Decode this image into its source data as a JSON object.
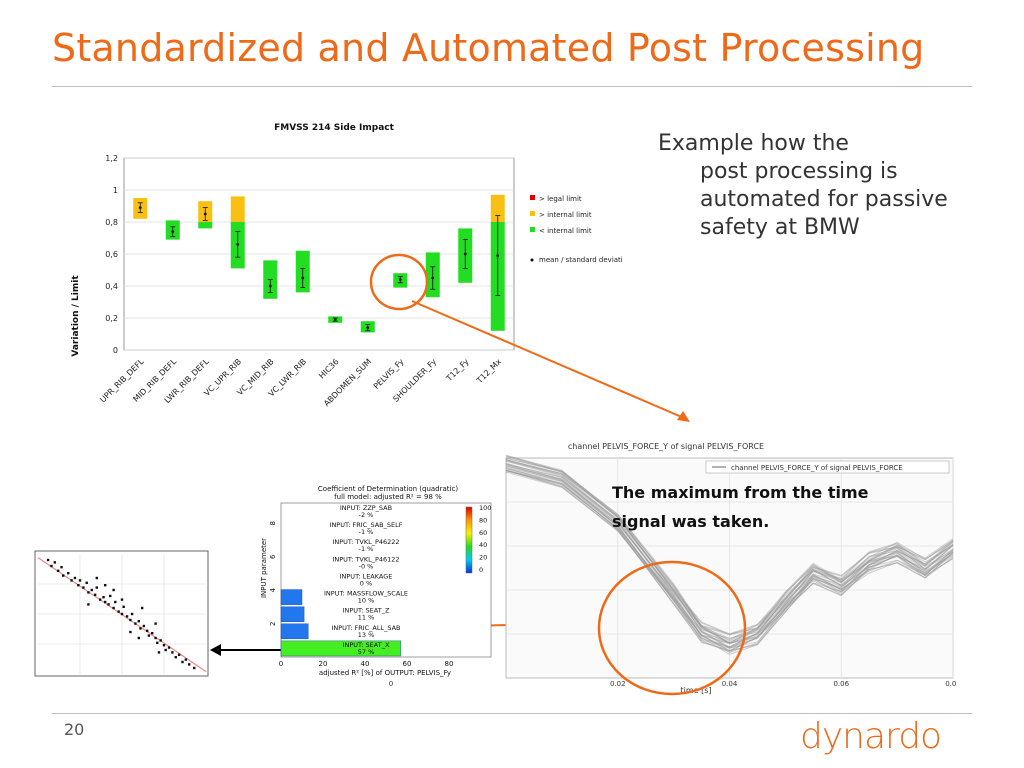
{
  "slide": {
    "title": "Standardized and Automated Post Processing",
    "bullet_line1": "Example how the",
    "bullet_rest": "post processing is automated for passive safety at BMW",
    "caption": "The maximum from the time signal was taken.",
    "page_number": "20",
    "logo_text": "dynardo"
  },
  "colors": {
    "accent": "#ee6a18",
    "green": "#22dd22",
    "yellow": "#f8c012",
    "red": "#e00000"
  },
  "chart_data": [
    {
      "type": "bar",
      "title": "FMVSS 214 Side Impact",
      "ylabel": "Variation / Limit",
      "ylim": [
        0,
        1.2
      ],
      "yticks": [
        "0",
        "0,2",
        "0,4",
        "0,6",
        "0,8",
        "1",
        "1,2"
      ],
      "categories": [
        "UPR_RIB_DEFL",
        "MID_RIB_DEFL",
        "LWR_RIB_DEFL",
        "VC_UPR_RIB",
        "VC_MID_RIB",
        "VC_LWR_RIB",
        "HIC36",
        "ABDOMEN_SUM",
        "PELVIS_Fy",
        "SHOULDER_Fy",
        "T12_Fy",
        "T12_Mx"
      ],
      "ranges": [
        {
          "green_low": 0.82,
          "green_high": 0.82,
          "yellow_high": 0.95
        },
        {
          "green_low": 0.69,
          "green_high": 0.81,
          "yellow_high": 0.81
        },
        {
          "green_low": 0.76,
          "green_high": 0.8,
          "yellow_high": 0.93
        },
        {
          "green_low": 0.51,
          "green_high": 0.8,
          "yellow_high": 0.96
        },
        {
          "green_low": 0.32,
          "green_high": 0.56,
          "yellow_high": 0.56
        },
        {
          "green_low": 0.36,
          "green_high": 0.62,
          "yellow_high": 0.62
        },
        {
          "green_low": 0.17,
          "green_high": 0.21,
          "yellow_high": 0.21
        },
        {
          "green_low": 0.11,
          "green_high": 0.18,
          "yellow_high": 0.18
        },
        {
          "green_low": 0.39,
          "green_high": 0.48,
          "yellow_high": 0.48
        },
        {
          "green_low": 0.33,
          "green_high": 0.61,
          "yellow_high": 0.61
        },
        {
          "green_low": 0.42,
          "green_high": 0.76,
          "yellow_high": 0.76
        },
        {
          "green_low": 0.12,
          "green_high": 0.8,
          "yellow_high": 0.97
        }
      ],
      "mean": [
        0.89,
        0.74,
        0.85,
        0.66,
        0.4,
        0.45,
        0.19,
        0.14,
        0.44,
        0.45,
        0.6,
        0.59
      ],
      "std": [
        0.03,
        0.03,
        0.04,
        0.08,
        0.04,
        0.06,
        0.01,
        0.02,
        0.02,
        0.07,
        0.09,
        0.25
      ],
      "legend": [
        "> legal limit",
        "> internal limit",
        "< internal limit",
        "mean / standard deviation"
      ],
      "legend_position": "right"
    },
    {
      "type": "bar",
      "title": "Coefficient of Determination (quadratic)",
      "subtitle": "full model: adjusted R² =    98 %",
      "xlabel": "adjusted R² [%] of OUTPUT: PELVIS_Fy",
      "ylabel": "INPUT parameter",
      "xlim": [
        0,
        100
      ],
      "xticks": [
        "0",
        "20",
        "40",
        "60",
        "80"
      ],
      "yticks": [
        "2",
        "4",
        "6",
        "8"
      ],
      "categories": [
        "INPUT: ZZP_SAB",
        "INPUT: FRIC_SAB_SELF",
        "INPUT: TVKL_P46222",
        "INPUT: TVKL_P46122",
        "INPUT: LEAKAGE",
        "INPUT: MASSFLOW_SCALE",
        "INPUT: SEAT_Z",
        "INPUT: FRIC_ALL_SAB",
        "INPUT: SEAT_X"
      ],
      "value_labels": [
        "-2 %",
        "-1 %",
        "-1 %",
        "-0 %",
        "0 %",
        "10 %",
        "11 %",
        "13 %",
        "57 %"
      ],
      "values": [
        -2,
        -1,
        -1,
        0,
        0,
        10,
        11,
        13,
        57
      ],
      "colorbar_ticks": [
        "100",
        "80",
        "60",
        "40",
        "20",
        "0"
      ]
    },
    {
      "type": "line",
      "title": "channel PELVIS_FORCE_Y of signal PELVIS_FORCE",
      "legend": [
        "channel PELVIS_FORCE_Y of signal PELVIS_FORCE"
      ],
      "xlabel": "time [s]",
      "xlim": [
        0,
        0.08
      ],
      "xticks": [
        "0",
        "0.02",
        "0.04",
        "0.06",
        "0.08"
      ],
      "series_mean": {
        "x": [
          0.0,
          0.01,
          0.02,
          0.03,
          0.035,
          0.04,
          0.045,
          0.05,
          0.055,
          0.06,
          0.065,
          0.07,
          0.075,
          0.08
        ],
        "y": [
          1.0,
          0.93,
          0.72,
          0.38,
          0.2,
          0.14,
          0.19,
          0.34,
          0.48,
          0.42,
          0.53,
          0.58,
          0.5,
          0.6
        ]
      }
    },
    {
      "type": "scatter",
      "title": "",
      "points": [
        [
          0.06,
          0.95
        ],
        [
          0.08,
          0.9
        ],
        [
          0.1,
          0.93
        ],
        [
          0.12,
          0.86
        ],
        [
          0.14,
          0.89
        ],
        [
          0.15,
          0.82
        ],
        [
          0.18,
          0.84
        ],
        [
          0.2,
          0.78
        ],
        [
          0.22,
          0.8
        ],
        [
          0.24,
          0.74
        ],
        [
          0.25,
          0.78
        ],
        [
          0.27,
          0.72
        ],
        [
          0.29,
          0.76
        ],
        [
          0.3,
          0.68
        ],
        [
          0.32,
          0.7
        ],
        [
          0.34,
          0.66
        ],
        [
          0.35,
          0.72
        ],
        [
          0.37,
          0.62
        ],
        [
          0.39,
          0.64
        ],
        [
          0.4,
          0.6
        ],
        [
          0.42,
          0.58
        ],
        [
          0.43,
          0.65
        ],
        [
          0.45,
          0.55
        ],
        [
          0.46,
          0.6
        ],
        [
          0.48,
          0.52
        ],
        [
          0.5,
          0.5
        ],
        [
          0.51,
          0.56
        ],
        [
          0.53,
          0.48
        ],
        [
          0.55,
          0.45
        ],
        [
          0.56,
          0.5
        ],
        [
          0.58,
          0.42
        ],
        [
          0.6,
          0.44
        ],
        [
          0.61,
          0.38
        ],
        [
          0.63,
          0.4
        ],
        [
          0.65,
          0.36
        ],
        [
          0.66,
          0.32
        ],
        [
          0.68,
          0.34
        ],
        [
          0.7,
          0.3
        ],
        [
          0.71,
          0.26
        ],
        [
          0.73,
          0.28
        ],
        [
          0.75,
          0.24
        ],
        [
          0.76,
          0.2
        ],
        [
          0.78,
          0.22
        ],
        [
          0.8,
          0.18
        ],
        [
          0.82,
          0.14
        ],
        [
          0.84,
          0.16
        ],
        [
          0.86,
          0.1
        ],
        [
          0.88,
          0.12
        ],
        [
          0.9,
          0.08
        ],
        [
          0.93,
          0.05
        ],
        [
          0.3,
          0.58
        ],
        [
          0.45,
          0.7
        ],
        [
          0.55,
          0.35
        ],
        [
          0.62,
          0.55
        ],
        [
          0.7,
          0.42
        ],
        [
          0.35,
          0.8
        ],
        [
          0.4,
          0.74
        ],
        [
          0.5,
          0.62
        ],
        [
          0.6,
          0.3
        ],
        [
          0.72,
          0.18
        ]
      ],
      "fit_line": {
        "x": [
          0.0,
          1.0
        ],
        "y": [
          0.97,
          0.02
        ]
      }
    }
  ]
}
